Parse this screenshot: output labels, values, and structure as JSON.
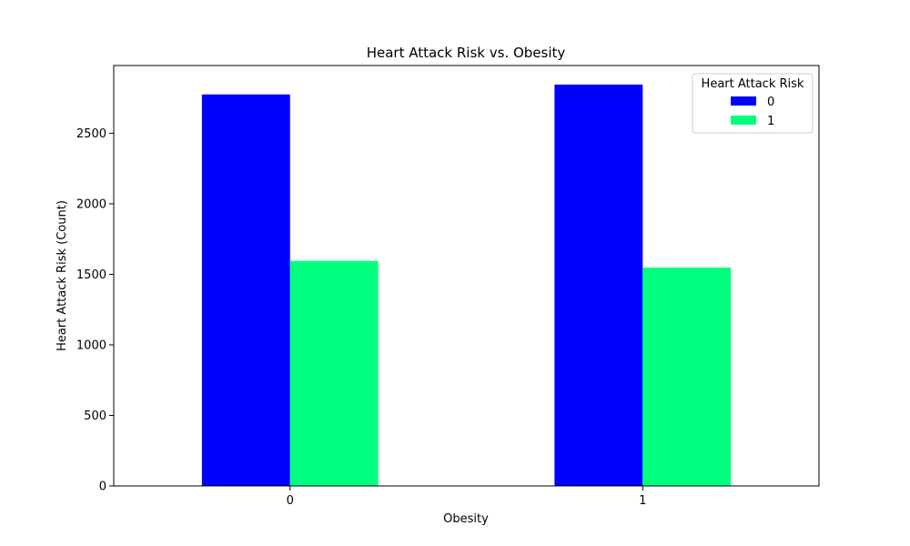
{
  "chart_data": {
    "type": "bar",
    "title": "Heart Attack Risk vs. Obesity",
    "xlabel": "Obesity",
    "ylabel": "Heart Attack Risk (Count)",
    "categories": [
      "0",
      "1"
    ],
    "series": [
      {
        "name": "0",
        "color": "#0000ff",
        "values": [
          2775,
          2845
        ]
      },
      {
        "name": "1",
        "color": "#00ff7f",
        "values": [
          1595,
          1548
        ]
      }
    ],
    "ylim": [
      0,
      2980
    ],
    "yticks": [
      0,
      500,
      1000,
      1500,
      2000,
      2500
    ],
    "grid": false,
    "legend": {
      "title": "Heart Attack Risk",
      "placement": "top-right"
    }
  }
}
